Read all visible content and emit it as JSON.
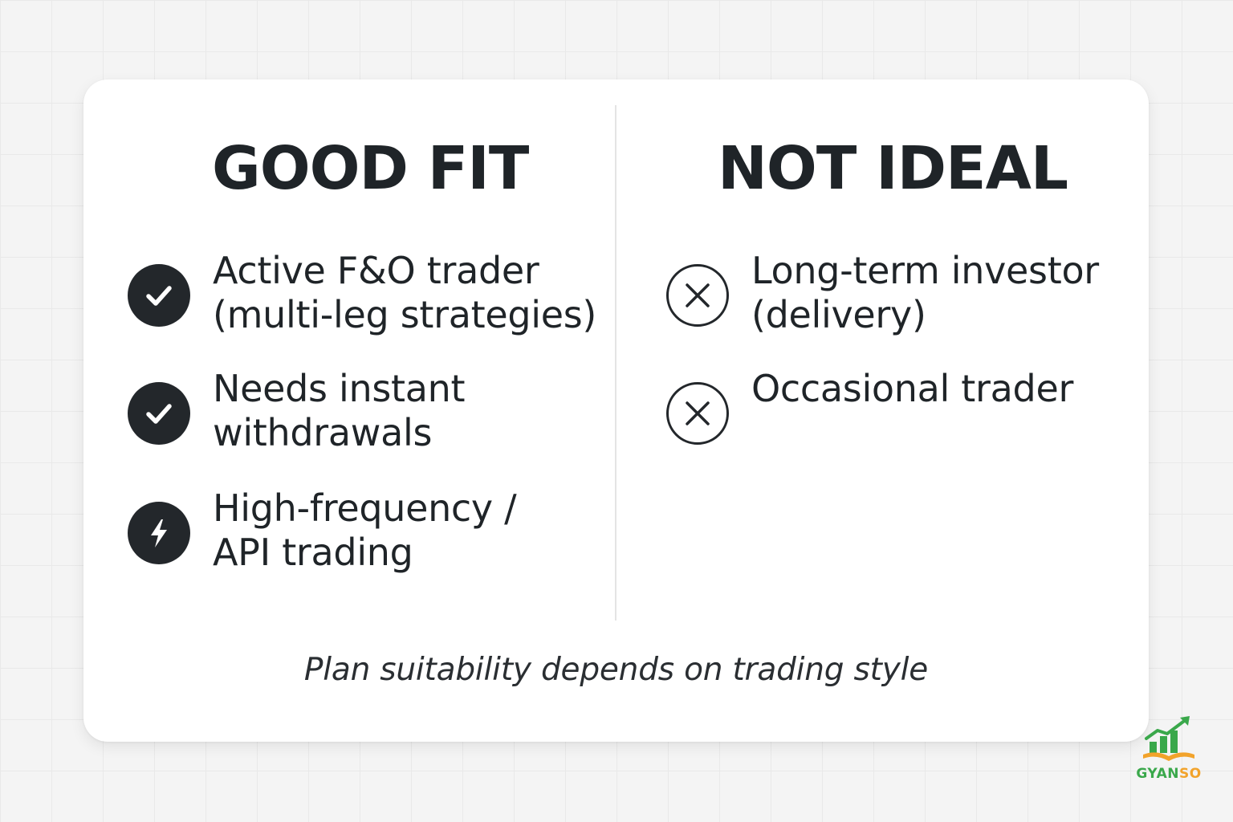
{
  "colors": {
    "page_background": "#f4f4f4",
    "card_background": "#ffffff",
    "ink": "#1f2428",
    "logo_green": "#3aa84b",
    "logo_orange": "#f2a32b"
  },
  "good_fit": {
    "title": "GOOD FIT",
    "items": [
      {
        "icon": "check-circle-icon",
        "line1": "Active F&O trader",
        "line2": "(multi-leg strategies)"
      },
      {
        "icon": "check-circle-icon",
        "line1": "Needs instant",
        "line2": "withdrawals"
      },
      {
        "icon": "lightning-circle-icon",
        "line1": "High-frequency /",
        "line2": "API trading"
      }
    ]
  },
  "not_ideal": {
    "title": "NOT IDEAL",
    "items": [
      {
        "icon": "x-circle-icon",
        "line1": "Long-term investor",
        "line2": "(delivery)"
      },
      {
        "icon": "x-circle-icon",
        "line1": "Occasional trader"
      }
    ]
  },
  "footer": {
    "note": "Plan suitability depends on trading style"
  },
  "logo": {
    "name_part1": "GYAN",
    "name_part2": "SO"
  }
}
